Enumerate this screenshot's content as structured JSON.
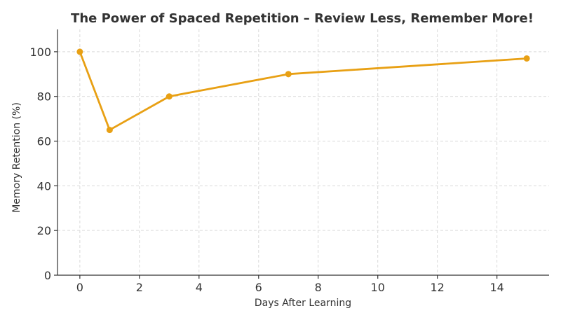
{
  "chart_data": {
    "type": "line",
    "title": "The Power of Spaced Repetition – Review Less, Remember More!",
    "xlabel": "Days After Learning",
    "ylabel": "Memory Retention (%)",
    "xlim": [
      -0.75,
      15.75
    ],
    "ylim": [
      0,
      110
    ],
    "xticks": [
      0,
      2,
      4,
      6,
      8,
      10,
      12,
      14
    ],
    "yticks": [
      0,
      20,
      40,
      60,
      80,
      100
    ],
    "grid": true,
    "series": [
      {
        "x": [
          0,
          1,
          3,
          7,
          15
        ],
        "y": [
          100,
          65,
          80,
          90,
          97
        ],
        "color": "#e8a014",
        "marker": "circle"
      }
    ]
  }
}
